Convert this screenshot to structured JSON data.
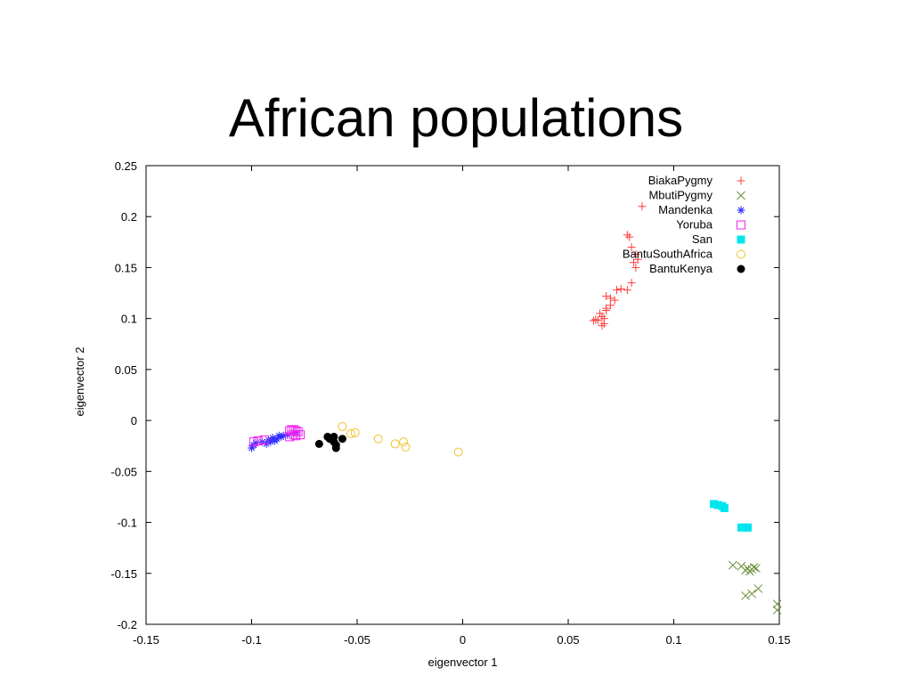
{
  "slide": {
    "title": "African populations"
  },
  "colors": {
    "BiakaPygmy": "#ff3b3b",
    "MbutiPygmy": "#6b8e3a",
    "Mandenka": "#2a2aff",
    "Yoruba": "#ee22ee",
    "San": "#00e5ee",
    "BantuSouthAfrica": "#f2c12e",
    "BantuKenya": "#000000"
  },
  "chart_data": {
    "type": "scatter",
    "title": "African populations",
    "xlabel": "eigenvector 1",
    "ylabel": "eigenvector 2",
    "xlim": [
      -0.15,
      0.15
    ],
    "ylim": [
      -0.2,
      0.25
    ],
    "xticks": [
      "-0.15",
      "-0.1",
      "-0.05",
      "0",
      "0.05",
      "0.1",
      "0.15"
    ],
    "yticks": [
      "0.25",
      "0.2",
      "0.15",
      "0.1",
      "0.05",
      "0",
      "-0.05",
      "-0.1",
      "-0.15",
      "-0.2"
    ],
    "grid": false,
    "legend_position": "top-right",
    "series": [
      {
        "name": "BiakaPygmy",
        "marker": "plus",
        "points": [
          [
            0.078,
            0.182
          ],
          [
            0.079,
            0.18
          ],
          [
            0.08,
            0.17
          ],
          [
            0.082,
            0.163
          ],
          [
            0.081,
            0.155
          ],
          [
            0.082,
            0.15
          ],
          [
            0.083,
            0.158
          ],
          [
            0.08,
            0.135
          ],
          [
            0.078,
            0.128
          ],
          [
            0.075,
            0.129
          ],
          [
            0.073,
            0.128
          ],
          [
            0.072,
            0.118
          ],
          [
            0.07,
            0.12
          ],
          [
            0.07,
            0.113
          ],
          [
            0.068,
            0.122
          ],
          [
            0.068,
            0.108
          ],
          [
            0.067,
            0.1
          ],
          [
            0.066,
            0.102
          ],
          [
            0.065,
            0.105
          ],
          [
            0.064,
            0.098
          ],
          [
            0.063,
            0.099
          ],
          [
            0.062,
            0.098
          ],
          [
            0.066,
            0.093
          ],
          [
            0.067,
            0.095
          ],
          [
            0.068,
            0.11
          ],
          [
            0.085,
            0.21
          ]
        ]
      },
      {
        "name": "MbutiPygmy",
        "marker": "x",
        "points": [
          [
            0.128,
            -0.142
          ],
          [
            0.132,
            -0.143
          ],
          [
            0.134,
            -0.147
          ],
          [
            0.135,
            -0.145
          ],
          [
            0.136,
            -0.148
          ],
          [
            0.137,
            -0.146
          ],
          [
            0.138,
            -0.144
          ],
          [
            0.139,
            -0.145
          ],
          [
            0.134,
            -0.172
          ],
          [
            0.137,
            -0.17
          ],
          [
            0.14,
            -0.165
          ],
          [
            0.149,
            -0.18
          ],
          [
            0.149,
            -0.186
          ]
        ]
      },
      {
        "name": "Mandenka",
        "marker": "asterisk",
        "points": [
          [
            -0.1,
            -0.027
          ],
          [
            -0.099,
            -0.024
          ],
          [
            -0.098,
            -0.022
          ],
          [
            -0.095,
            -0.021
          ],
          [
            -0.093,
            -0.023
          ],
          [
            -0.092,
            -0.019
          ],
          [
            -0.091,
            -0.021
          ],
          [
            -0.09,
            -0.017
          ],
          [
            -0.089,
            -0.02
          ],
          [
            -0.088,
            -0.018
          ],
          [
            -0.087,
            -0.015
          ],
          [
            -0.086,
            -0.016
          ],
          [
            -0.085,
            -0.015
          ],
          [
            -0.083,
            -0.014
          ],
          [
            -0.081,
            -0.013
          ],
          [
            -0.079,
            -0.012
          ]
        ]
      },
      {
        "name": "Yoruba",
        "marker": "square",
        "points": [
          [
            -0.099,
            -0.021
          ],
          [
            -0.097,
            -0.02
          ],
          [
            -0.094,
            -0.019
          ],
          [
            -0.082,
            -0.01
          ],
          [
            -0.081,
            -0.009
          ],
          [
            -0.08,
            -0.009
          ],
          [
            -0.079,
            -0.01
          ],
          [
            -0.078,
            -0.011
          ],
          [
            -0.08,
            -0.014
          ],
          [
            -0.079,
            -0.015
          ],
          [
            -0.077,
            -0.014
          ],
          [
            -0.082,
            -0.016
          ]
        ]
      },
      {
        "name": "San",
        "marker": "filled-square",
        "points": [
          [
            0.119,
            -0.082
          ],
          [
            0.121,
            -0.083
          ],
          [
            0.123,
            -0.084
          ],
          [
            0.124,
            -0.086
          ],
          [
            0.132,
            -0.105
          ],
          [
            0.134,
            -0.105
          ],
          [
            0.135,
            -0.105
          ]
        ]
      },
      {
        "name": "BantuSouthAfrica",
        "marker": "circle",
        "points": [
          [
            -0.057,
            -0.006
          ],
          [
            -0.053,
            -0.013
          ],
          [
            -0.051,
            -0.012
          ],
          [
            -0.04,
            -0.018
          ],
          [
            -0.032,
            -0.023
          ],
          [
            -0.028,
            -0.021
          ],
          [
            -0.027,
            -0.026
          ],
          [
            -0.002,
            -0.031
          ]
        ]
      },
      {
        "name": "BantuKenya",
        "marker": "filled-circle",
        "points": [
          [
            -0.068,
            -0.023
          ],
          [
            -0.064,
            -0.016
          ],
          [
            -0.063,
            -0.018
          ],
          [
            -0.061,
            -0.016
          ],
          [
            -0.061,
            -0.021
          ],
          [
            -0.06,
            -0.024
          ],
          [
            -0.06,
            -0.027
          ],
          [
            -0.057,
            -0.018
          ]
        ]
      }
    ]
  }
}
